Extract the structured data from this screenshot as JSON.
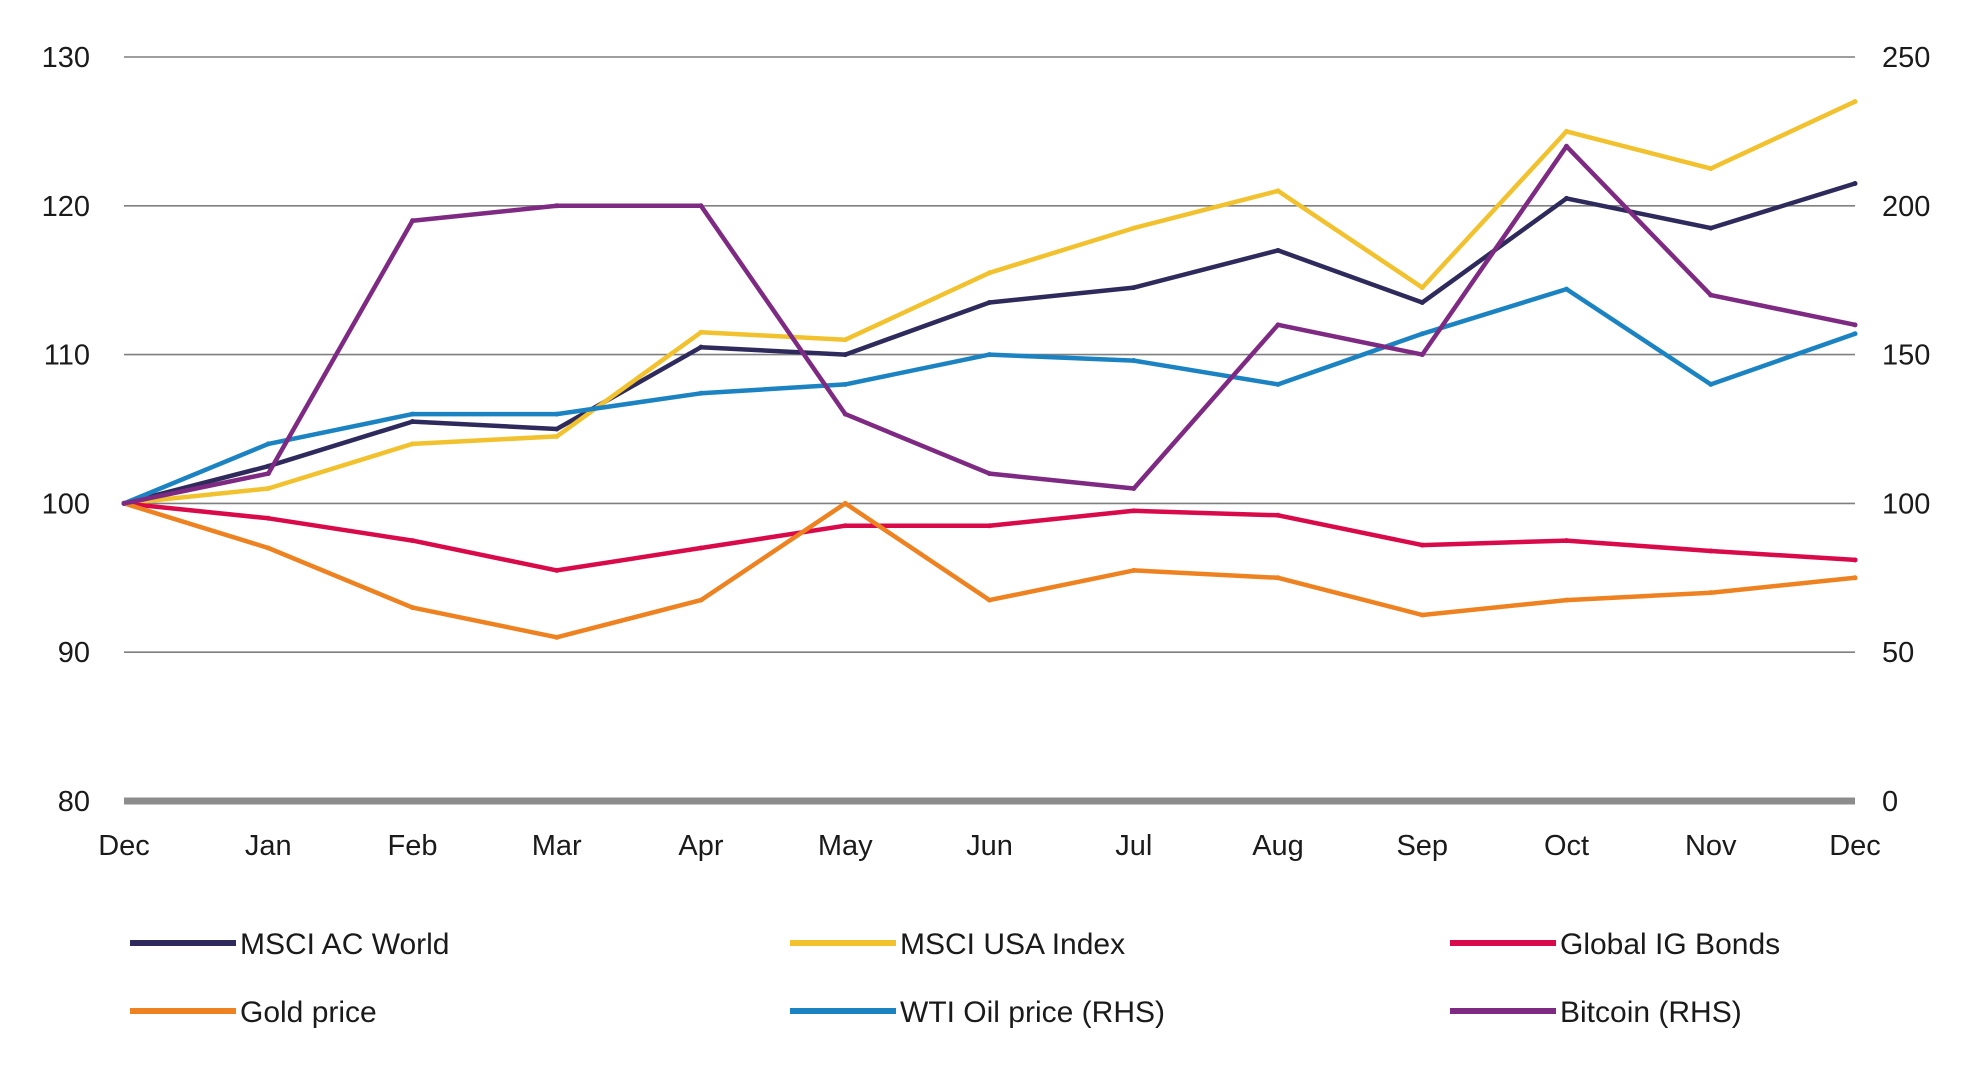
{
  "chart_data": {
    "type": "line",
    "title": "",
    "xlabel": "",
    "ylabel": "",
    "y2label": "",
    "x": [
      "Dec",
      "Jan",
      "Feb",
      "Mar",
      "Apr",
      "May",
      "Jun",
      "Jul",
      "Aug",
      "Sep",
      "Oct",
      "Nov",
      "Dec"
    ],
    "ylim": [
      80,
      130
    ],
    "y2lim": [
      0,
      250
    ],
    "yticks": [
      80,
      90,
      100,
      110,
      120,
      130
    ],
    "y2ticks": [
      0,
      50,
      100,
      150,
      200,
      250
    ],
    "grid": true,
    "legend_position": "bottom",
    "series": [
      {
        "name": "MSCI AC World",
        "axis": "left",
        "color": "#2e2a5c",
        "values": [
          100,
          102.5,
          105.5,
          105,
          110.5,
          110,
          113.5,
          114.5,
          117,
          113.5,
          120.5,
          118.5,
          121.5
        ]
      },
      {
        "name": "MSCI USA Index",
        "axis": "left",
        "color": "#f2c12e",
        "values": [
          100,
          101,
          104,
          104.5,
          111.5,
          111,
          115.5,
          118.5,
          121,
          114.5,
          125,
          122.5,
          127
        ]
      },
      {
        "name": "Global IG Bonds",
        "axis": "left",
        "color": "#d90a4a",
        "values": [
          100,
          99,
          97.5,
          95.5,
          97,
          98.5,
          98.5,
          99.5,
          99.2,
          97.2,
          97.5,
          96.8,
          96.2
        ]
      },
      {
        "name": "Gold price",
        "axis": "left",
        "color": "#ee8221",
        "values": [
          100,
          97,
          93,
          91,
          93.5,
          100,
          93.5,
          95.5,
          95,
          92.5,
          93.5,
          94,
          95
        ]
      },
      {
        "name": "WTI Oil price (RHS)",
        "axis": "right",
        "color": "#1c83c2",
        "values": [
          100,
          120,
          130,
          130,
          137,
          140,
          150,
          148,
          140,
          157,
          172,
          140,
          157
        ]
      },
      {
        "name": "Bitcoin (RHS)",
        "axis": "right",
        "color": "#7e2a83",
        "values": [
          100,
          110,
          195,
          200,
          200,
          130,
          110,
          105,
          160,
          150,
          220,
          170,
          160
        ]
      }
    ]
  }
}
